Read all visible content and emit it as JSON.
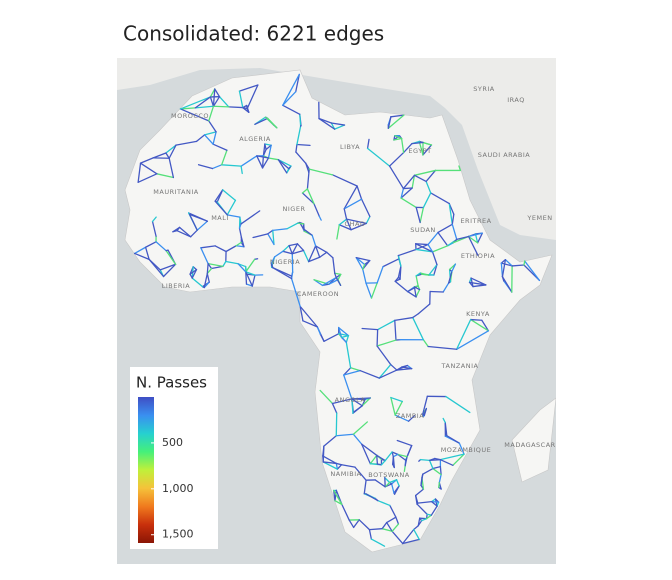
{
  "title": "Consolidated: 6221 edges",
  "map_labels": [
    "MOROCCO",
    "ALGERIA",
    "LIBYA",
    "EGYPT",
    "SAUDI ARABIA",
    "MAURITANIA",
    "MALI",
    "NIGER",
    "CHAD",
    "SUDAN",
    "ETHIOPIA",
    "NIGERIA",
    "CAMEROON",
    "KENYA",
    "TANZANIA",
    "ZAMBIA",
    "ANGOLA",
    "NAMIBIA",
    "BOTSWANA",
    "MOZAMBIQUE",
    "MADAGASCAR",
    "YEMEN",
    "IRAQ",
    "SYRIA",
    "LIBERIA",
    "ERITREA"
  ],
  "legend": {
    "title": "N. Passes",
    "lim": [
      0,
      1590
    ],
    "ticks": [
      500,
      {
        "value": 1000,
        "label": "1,000"
      },
      {
        "value": 1500,
        "label": "1,500"
      }
    ],
    "colors": [
      "#3f4ec4",
      "#3a8ff0",
      "#26d0d0",
      "#45f07a",
      "#c0f03a",
      "#f5c23a",
      "#f07a1e",
      "#c8300c",
      "#8a1505"
    ]
  }
}
